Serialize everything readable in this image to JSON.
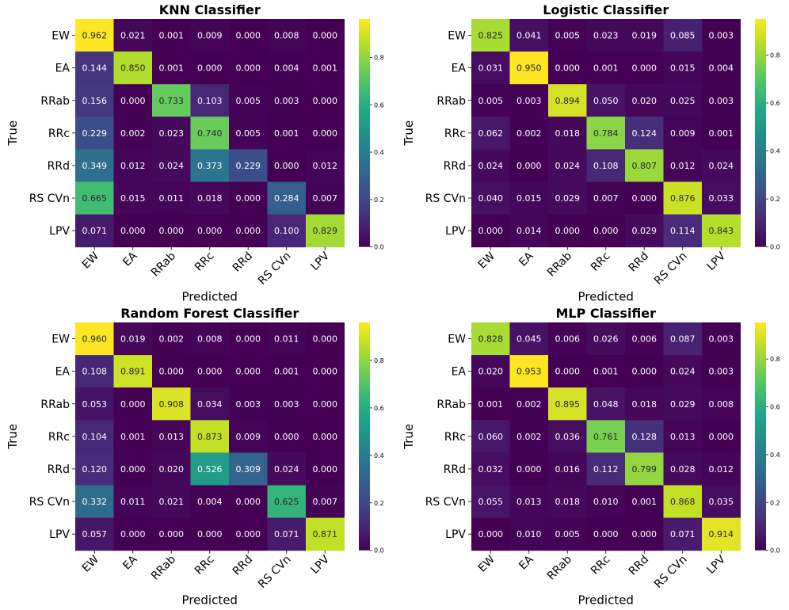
{
  "chart_data": [
    {
      "type": "heatmap",
      "title": "KNN Classifier",
      "xlabel": "Predicted",
      "ylabel": "True",
      "x_categories": [
        "EW",
        "EA",
        "RRab",
        "RRc",
        "RRd",
        "RS CVn",
        "LPV"
      ],
      "y_categories": [
        "EW",
        "EA",
        "RRab",
        "RRc",
        "RRd",
        "RS CVn",
        "LPV"
      ],
      "values": [
        [
          0.962,
          0.021,
          0.001,
          0.009,
          0.0,
          0.008,
          0.0
        ],
        [
          0.144,
          0.85,
          0.001,
          0.0,
          0.0,
          0.004,
          0.001
        ],
        [
          0.156,
          0.0,
          0.733,
          0.103,
          0.005,
          0.003,
          0.0
        ],
        [
          0.229,
          0.002,
          0.023,
          0.74,
          0.005,
          0.001,
          0.0
        ],
        [
          0.349,
          0.012,
          0.024,
          0.373,
          0.229,
          0.0,
          0.012
        ],
        [
          0.665,
          0.015,
          0.011,
          0.018,
          0.0,
          0.284,
          0.007
        ],
        [
          0.071,
          0.0,
          0.0,
          0.0,
          0.0,
          0.1,
          0.829
        ]
      ],
      "colorbar": {
        "range": [
          0.0,
          0.962
        ],
        "ticks": [
          "0.0",
          "0.2",
          "0.4",
          "0.6",
          "0.8"
        ]
      }
    },
    {
      "type": "heatmap",
      "title": "Logistic Classifier",
      "xlabel": "Predicted",
      "ylabel": "True",
      "x_categories": [
        "EW",
        "EA",
        "RRab",
        "RRc",
        "RRd",
        "RS CVn",
        "LPV"
      ],
      "y_categories": [
        "EW",
        "EA",
        "RRab",
        "RRc",
        "RRd",
        "RS CVn",
        "LPV"
      ],
      "values": [
        [
          0.825,
          0.041,
          0.005,
          0.023,
          0.019,
          0.085,
          0.003
        ],
        [
          0.031,
          0.95,
          0.0,
          0.001,
          0.0,
          0.015,
          0.004
        ],
        [
          0.005,
          0.003,
          0.894,
          0.05,
          0.02,
          0.025,
          0.003
        ],
        [
          0.062,
          0.002,
          0.018,
          0.784,
          0.124,
          0.009,
          0.001
        ],
        [
          0.024,
          0.0,
          0.024,
          0.108,
          0.807,
          0.012,
          0.024
        ],
        [
          0.04,
          0.015,
          0.029,
          0.007,
          0.0,
          0.876,
          0.033
        ],
        [
          0.0,
          0.014,
          0.0,
          0.0,
          0.029,
          0.114,
          0.843
        ]
      ],
      "colorbar": {
        "range": [
          0.0,
          0.95
        ],
        "ticks": [
          "0.0",
          "0.2",
          "0.4",
          "0.6",
          "0.8"
        ]
      }
    },
    {
      "type": "heatmap",
      "title": "Random Forest Classifier",
      "xlabel": "Predicted",
      "ylabel": "True",
      "x_categories": [
        "EW",
        "EA",
        "RRab",
        "RRc",
        "RRd",
        "RS CVn",
        "LPV"
      ],
      "y_categories": [
        "EW",
        "EA",
        "RRab",
        "RRc",
        "RRd",
        "RS CVn",
        "LPV"
      ],
      "values": [
        [
          0.96,
          0.019,
          0.002,
          0.008,
          0.0,
          0.011,
          0.0
        ],
        [
          0.108,
          0.891,
          0.0,
          0.0,
          0.0,
          0.001,
          0.0
        ],
        [
          0.053,
          0.0,
          0.908,
          0.034,
          0.003,
          0.003,
          0.0
        ],
        [
          0.104,
          0.001,
          0.013,
          0.873,
          0.009,
          0.0,
          0.0
        ],
        [
          0.12,
          0.0,
          0.02,
          0.526,
          0.309,
          0.024,
          0.0
        ],
        [
          0.332,
          0.011,
          0.021,
          0.004,
          0.0,
          0.625,
          0.007
        ],
        [
          0.057,
          0.0,
          0.0,
          0.0,
          0.0,
          0.071,
          0.871
        ]
      ],
      "colorbar": {
        "range": [
          0.0,
          0.96
        ],
        "ticks": [
          "0.0",
          "0.2",
          "0.4",
          "0.6",
          "0.8"
        ]
      }
    },
    {
      "type": "heatmap",
      "title": "MLP Classifier",
      "xlabel": "Predicted",
      "ylabel": "True",
      "x_categories": [
        "EW",
        "EA",
        "RRab",
        "RRc",
        "RRd",
        "RS CVn",
        "LPV"
      ],
      "y_categories": [
        "EW",
        "EA",
        "RRab",
        "RRc",
        "RRd",
        "RS CVn",
        "LPV"
      ],
      "values": [
        [
          0.828,
          0.045,
          0.006,
          0.026,
          0.006,
          0.087,
          0.003
        ],
        [
          0.02,
          0.953,
          0.0,
          0.001,
          0.0,
          0.024,
          0.003
        ],
        [
          0.001,
          0.002,
          0.895,
          0.048,
          0.018,
          0.029,
          0.008
        ],
        [
          0.06,
          0.002,
          0.036,
          0.761,
          0.128,
          0.013,
          0.0
        ],
        [
          0.032,
          0.0,
          0.016,
          0.112,
          0.799,
          0.028,
          0.012
        ],
        [
          0.055,
          0.013,
          0.018,
          0.01,
          0.001,
          0.868,
          0.035
        ],
        [
          0.0,
          0.01,
          0.005,
          0.0,
          0.0,
          0.071,
          0.914
        ]
      ],
      "colorbar": {
        "range": [
          0.0,
          0.953
        ],
        "ticks": [
          "0.0",
          "0.2",
          "0.4",
          "0.6",
          "0.8"
        ]
      }
    }
  ]
}
